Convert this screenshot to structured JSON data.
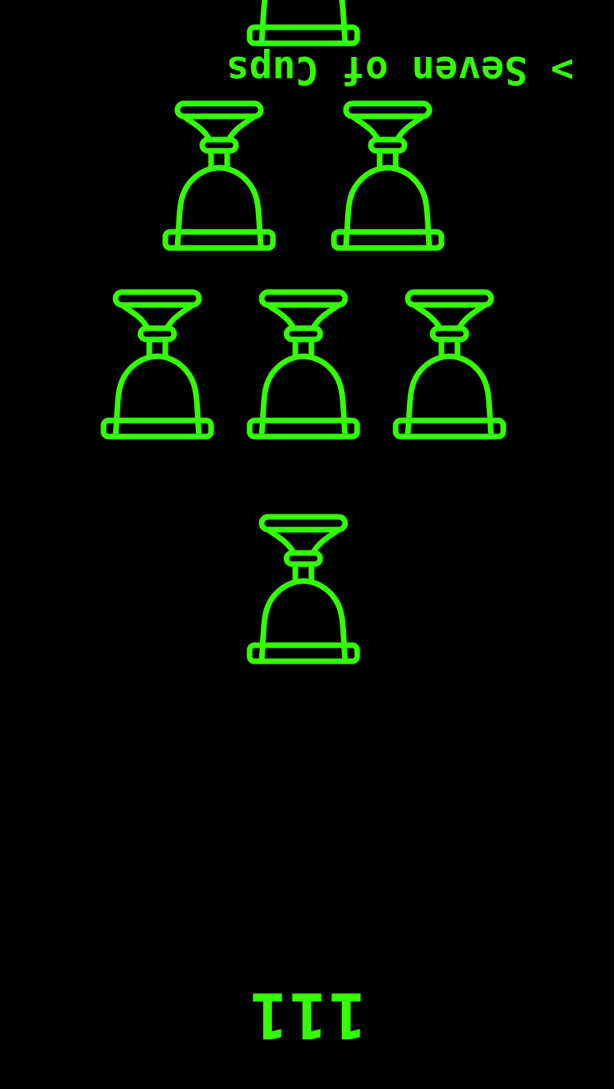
{
  "card": {
    "title": "> Seven of Cups",
    "number": "111",
    "cup_count": 7,
    "suit_icon": "cup-icon",
    "orientation": "reversed",
    "colors": {
      "background": "#000000",
      "foreground": "#33ff00"
    }
  }
}
